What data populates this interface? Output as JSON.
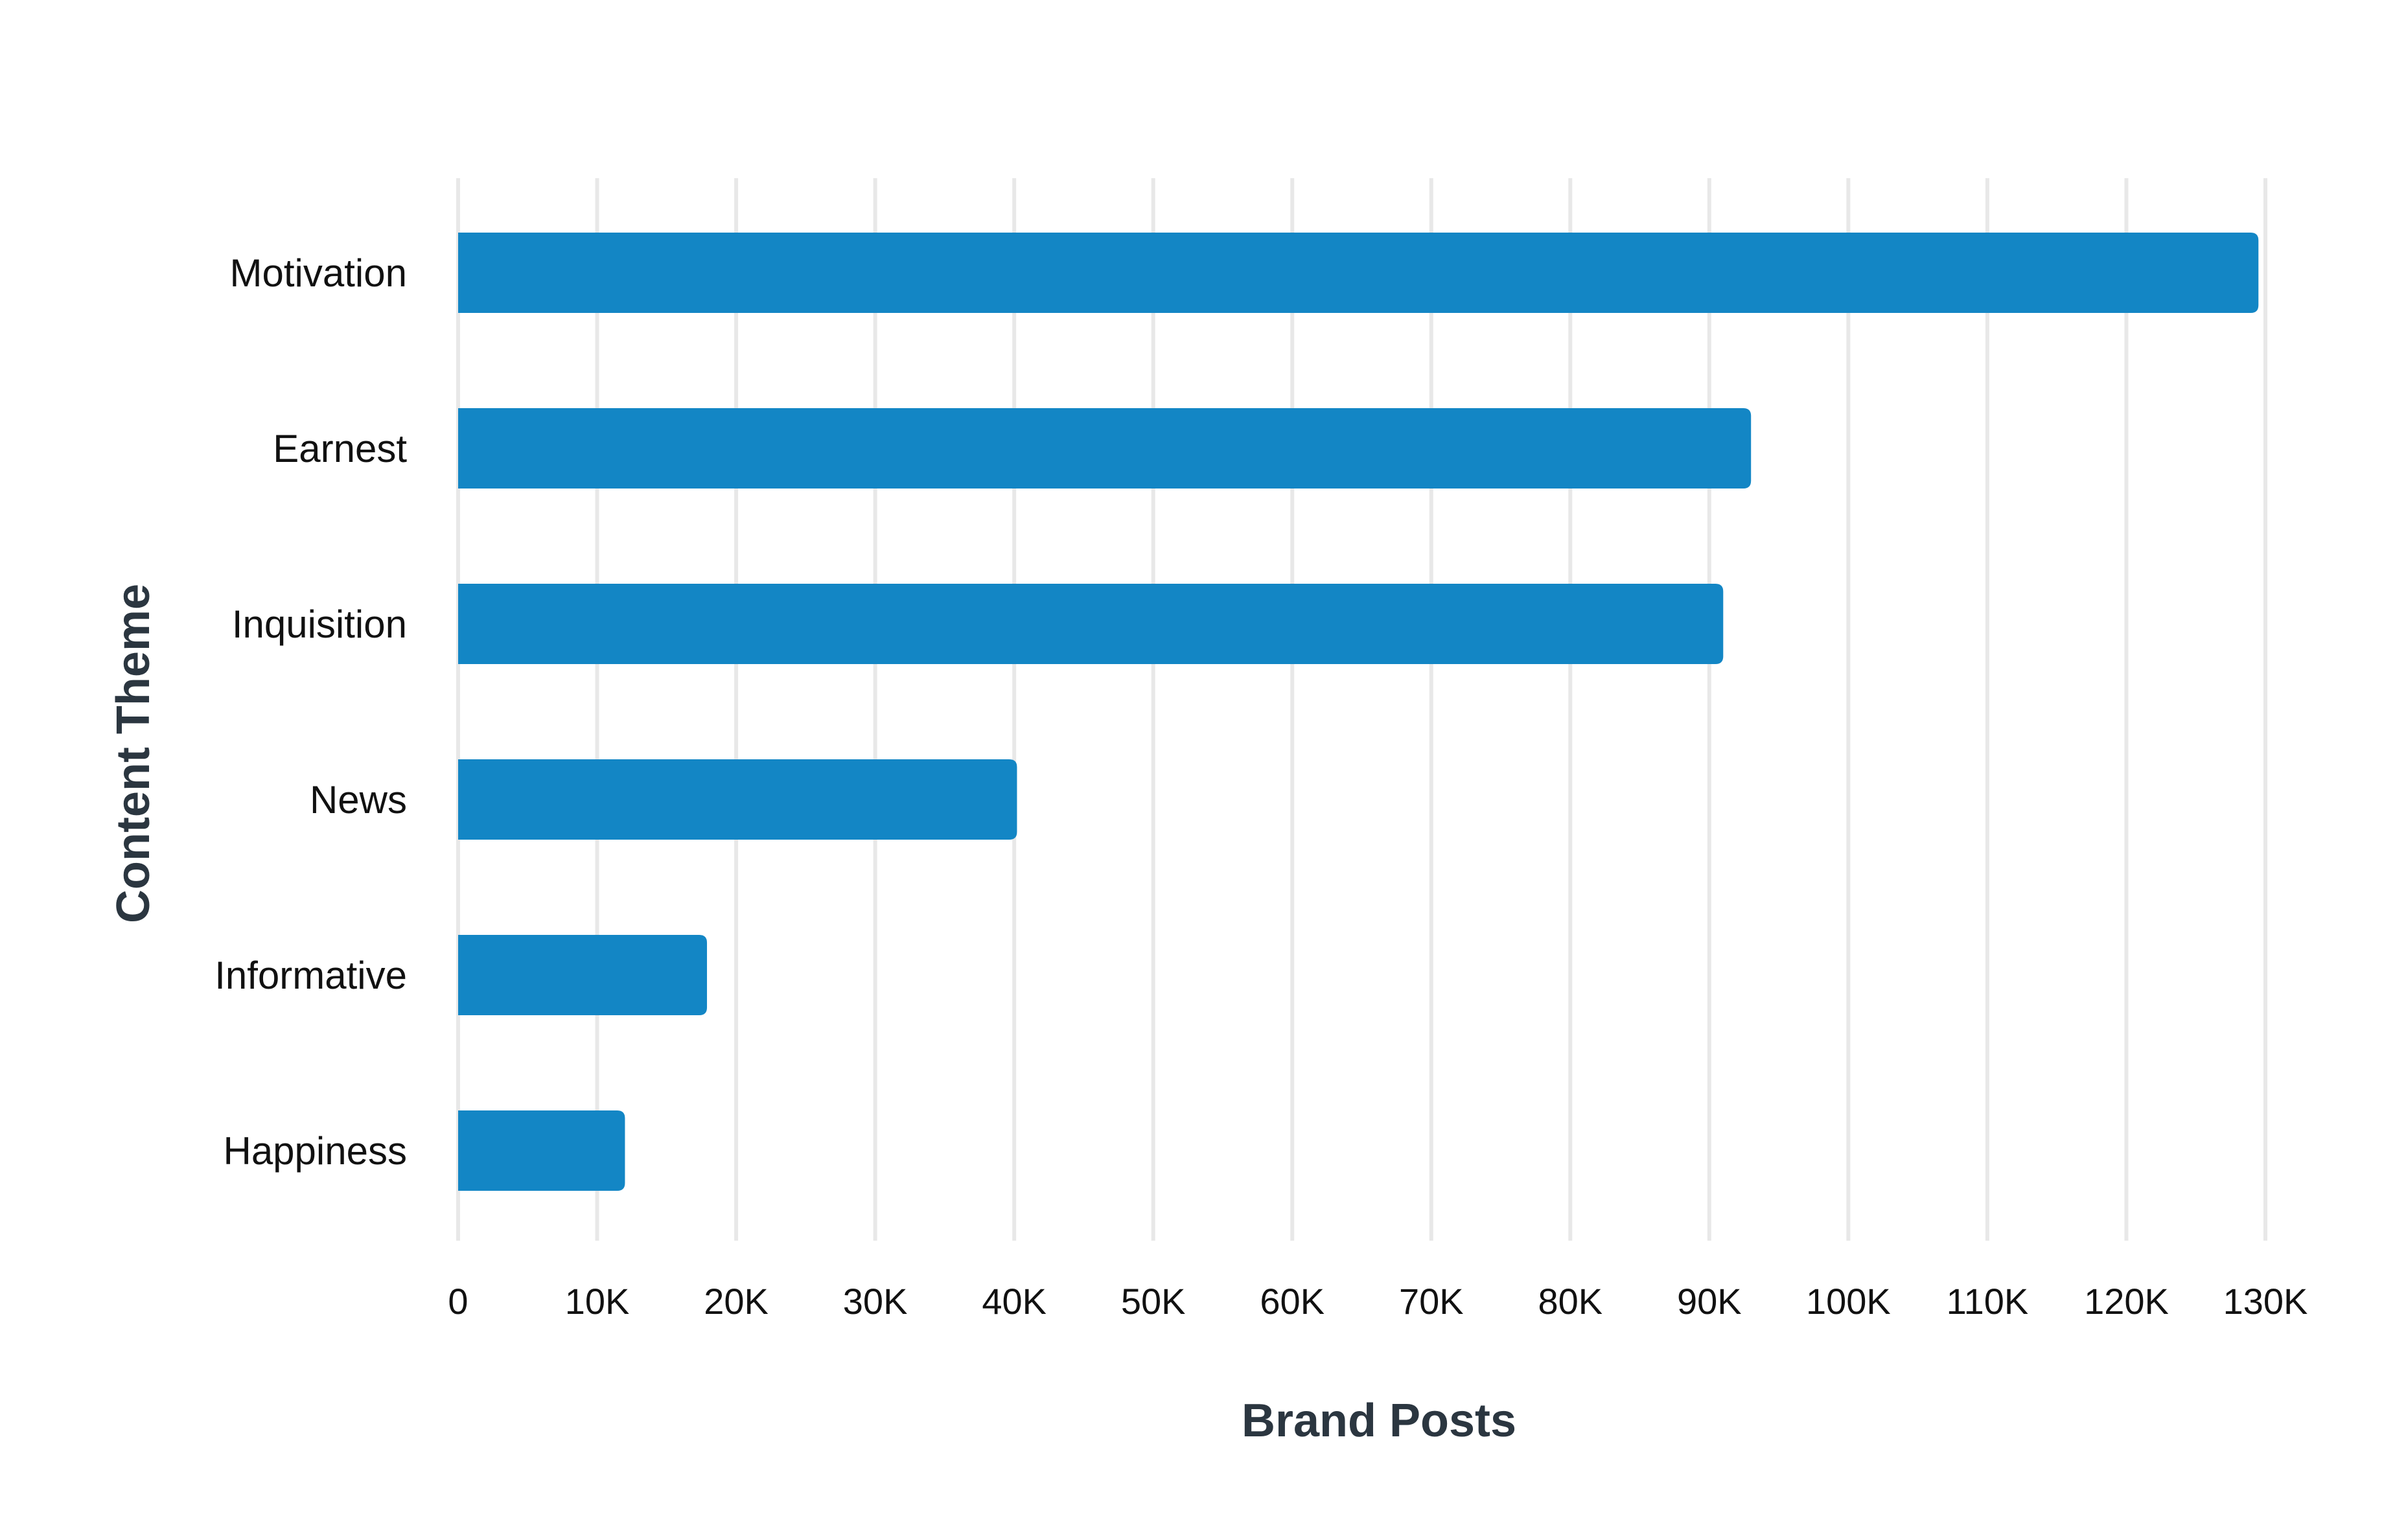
{
  "chart_data": {
    "type": "bar",
    "orientation": "horizontal",
    "categories": [
      "Motivation",
      "Earnest",
      "Inquisition",
      "News",
      "Informative",
      "Happiness"
    ],
    "values": [
      129500,
      93000,
      91000,
      40200,
      17900,
      12000
    ],
    "xlabel": "Brand Posts",
    "ylabel": "Content Theme",
    "xlim": [
      0,
      130000
    ],
    "xticks": [
      0,
      10000,
      20000,
      30000,
      40000,
      50000,
      60000,
      70000,
      80000,
      90000,
      100000,
      110000,
      120000,
      130000
    ],
    "xtick_labels": [
      "0",
      "10K",
      "20K",
      "30K",
      "40K",
      "50K",
      "60K",
      "70K",
      "80K",
      "90K",
      "100K",
      "110K",
      "120K",
      "130K"
    ],
    "grid": "vertical",
    "bar_color": "#1386c5",
    "grid_color": "#e8e8e8",
    "title_color": "#2b3640"
  }
}
